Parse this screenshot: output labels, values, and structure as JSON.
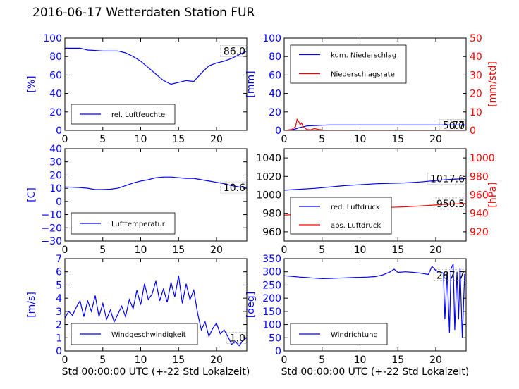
{
  "title": "2016-06-17 Wetterdaten Station FUR",
  "colors": {
    "primary": "#0000ff",
    "secondary": "#ff0000",
    "axis": "#000000"
  },
  "chart_data": [
    {
      "id": "humidity",
      "type": "line",
      "ylabel": "[%]",
      "xlabel": "",
      "xlim": [
        0,
        24
      ],
      "ylim": [
        0,
        100
      ],
      "xticks": [
        0,
        5,
        10,
        15,
        20
      ],
      "yticks": [
        0,
        20,
        40,
        60,
        80,
        100
      ],
      "legend": "bottom-left",
      "annotations": [
        {
          "text": "86.0",
          "x": 23.8,
          "y": 86
        }
      ],
      "series": [
        {
          "name": "rel. Luftfeuchte",
          "color": "#0000ff",
          "x": [
            0,
            2,
            3,
            5,
            7,
            8,
            9,
            10,
            11,
            12,
            13,
            14,
            15,
            16,
            17,
            18,
            19,
            20,
            21,
            22,
            23,
            24
          ],
          "y": [
            89,
            89,
            87,
            86,
            86,
            84,
            80,
            75,
            68,
            61,
            54,
            50,
            52,
            54,
            53,
            62,
            70,
            73,
            75,
            78,
            82,
            86
          ]
        }
      ]
    },
    {
      "id": "precip",
      "type": "line",
      "ylabel": "[mm]",
      "y2label": "[mm/std]",
      "xlabel": "",
      "xlim": [
        0,
        24
      ],
      "ylim": [
        0,
        100
      ],
      "y2lim": [
        0,
        50
      ],
      "xticks": [
        0,
        5,
        10,
        15,
        20
      ],
      "yticks": [
        0,
        20,
        40,
        60,
        80,
        100
      ],
      "y2ticks": [
        0,
        10,
        20,
        30,
        40,
        50
      ],
      "legend": "top-left",
      "annotations": [
        {
          "text": "5.77",
          "x": 23.8,
          "y": 5.77
        },
        {
          "text": "0.0",
          "x": 23.8,
          "y": 0
        }
      ],
      "series": [
        {
          "name": "kum. Niederschlag",
          "color": "#0000ff",
          "axis": "left",
          "x": [
            0,
            1,
            1.5,
            2,
            2.5,
            3,
            4,
            5,
            6,
            24
          ],
          "y": [
            0,
            0.5,
            1.5,
            3,
            4,
            4.8,
            5.3,
            5.6,
            5.77,
            5.77
          ]
        },
        {
          "name": "Niederschlagsrate",
          "color": "#ff0000",
          "axis": "right",
          "x": [
            0,
            1,
            1.5,
            1.7,
            1.9,
            2.1,
            2.3,
            2.5,
            2.8,
            3,
            3.5,
            4,
            4.5,
            5,
            5.3,
            6,
            24
          ],
          "y": [
            0,
            0.5,
            2,
            6,
            5,
            3,
            4,
            2,
            1,
            0.5,
            0.3,
            1,
            0.5,
            0.3,
            0,
            0,
            0
          ]
        }
      ]
    },
    {
      "id": "temperature",
      "type": "line",
      "ylabel": "[C]",
      "xlabel": "",
      "xlim": [
        0,
        24
      ],
      "ylim": [
        -30,
        40
      ],
      "xticks": [
        0,
        5,
        10,
        15,
        20
      ],
      "yticks": [
        -30,
        -20,
        -10,
        0,
        10,
        20,
        30,
        40
      ],
      "legend": "bottom-left",
      "annotations": [
        {
          "text": "10.6",
          "x": 23.8,
          "y": 10.6
        }
      ],
      "series": [
        {
          "name": "Lufttemperatur",
          "color": "#0000ff",
          "x": [
            0,
            2,
            3,
            4,
            5,
            6,
            7,
            8,
            9,
            10,
            11,
            12,
            13,
            14,
            15,
            16,
            17,
            18,
            19,
            20,
            21,
            22,
            23,
            24
          ],
          "y": [
            11,
            10.5,
            10,
            9,
            9,
            9.3,
            10,
            12,
            14,
            15.5,
            16.5,
            18,
            18.5,
            18.5,
            18,
            17.5,
            17.5,
            16.5,
            15.5,
            14.5,
            13.5,
            12,
            11,
            10.6
          ]
        }
      ]
    },
    {
      "id": "pressure",
      "type": "line",
      "ylabel": "",
      "y2label": "[hPa]",
      "xlabel": "",
      "xlim": [
        0,
        24
      ],
      "ylim": [
        950,
        1050
      ],
      "y2lim": [
        910,
        1010
      ],
      "xticks": [
        0,
        5,
        10,
        15,
        20
      ],
      "yticks": [
        960,
        980,
        1000,
        1020,
        1040
      ],
      "y2ticks": [
        920,
        940,
        960,
        980,
        1000
      ],
      "legend": "bottom-left",
      "annotations": [
        {
          "text": "1017.6",
          "x": 23.8,
          "y": 1017.6
        },
        {
          "text": "950.5",
          "x": 23.8,
          "y": 990.5
        }
      ],
      "series": [
        {
          "name": "red. Luftdruck",
          "color": "#0000ff",
          "axis": "left",
          "x": [
            0,
            2,
            4,
            6,
            8,
            10,
            12,
            14,
            16,
            18,
            20,
            22,
            24
          ],
          "y": [
            1005,
            1006,
            1007,
            1008.5,
            1010,
            1011,
            1012,
            1012.5,
            1013,
            1014,
            1015.5,
            1016.8,
            1017.6
          ]
        },
        {
          "name": "abs. Luftdruck",
          "color": "#ff0000",
          "axis": "right",
          "x": [
            0,
            2,
            4,
            6,
            8,
            10,
            12,
            14,
            16,
            18,
            20,
            22,
            24
          ],
          "y": [
            938,
            939,
            940,
            941,
            942.5,
            944,
            945.5,
            946.5,
            947,
            948,
            949,
            950,
            950.5
          ]
        }
      ]
    },
    {
      "id": "windspeed",
      "type": "line",
      "ylabel": "[m/s]",
      "xlabel": "Std 00:00:00 UTC (+-22 Std Lokalzeit)",
      "xlim": [
        0,
        24
      ],
      "ylim": [
        0,
        7
      ],
      "xticks": [
        0,
        5,
        10,
        15,
        20
      ],
      "yticks": [
        0,
        1,
        2,
        3,
        4,
        5,
        6,
        7
      ],
      "legend": "bottom-left",
      "annotations": [
        {
          "text": "1.0",
          "x": 23.8,
          "y": 1.0
        }
      ],
      "series": [
        {
          "name": "Windgeschwindigkeit",
          "color": "#0000ff",
          "x": [
            0,
            0.5,
            1,
            1.5,
            2,
            2.5,
            3,
            3.5,
            4,
            4.5,
            5,
            5.5,
            6,
            6.5,
            7,
            7.5,
            8,
            8.5,
            9,
            9.5,
            10,
            10.5,
            11,
            11.5,
            12,
            12.5,
            13,
            13.5,
            14,
            14.5,
            15,
            15.5,
            16,
            16.5,
            17,
            17.5,
            18,
            18.5,
            19,
            19.5,
            20,
            20.5,
            21,
            21.5,
            22,
            22.5,
            23,
            23.5,
            24
          ],
          "y": [
            2.5,
            3,
            2.7,
            3.3,
            3.8,
            2.6,
            3.8,
            3,
            4.2,
            2.6,
            3.6,
            2.4,
            3.1,
            2.2,
            2.8,
            3.4,
            2.6,
            3.9,
            3.2,
            4.6,
            3.5,
            5.1,
            3.9,
            4.3,
            5.3,
            3.8,
            4.7,
            3.7,
            5.2,
            4.1,
            5.7,
            3.6,
            5.1,
            3.9,
            4.6,
            2.9,
            1.6,
            2.2,
            1.1,
            1.7,
            2.1,
            1.3,
            1.6,
            1.1,
            0.5,
            0.7,
            0.4,
            0.8,
            1.0
          ]
        }
      ]
    },
    {
      "id": "winddir",
      "type": "line",
      "ylabel": "[deg]",
      "xlabel": "Std 00:00:00 UTC (+-22 Std Lokalzeit)",
      "xlim": [
        0,
        24
      ],
      "ylim": [
        0,
        350
      ],
      "xticks": [
        0,
        5,
        10,
        15,
        20
      ],
      "yticks": [
        0,
        50,
        100,
        150,
        200,
        250,
        300,
        350
      ],
      "legend": "bottom-left",
      "annotations": [
        {
          "text": "287.7",
          "x": 23.8,
          "y": 287.7
        }
      ],
      "series": [
        {
          "name": "Windrichtung",
          "color": "#0000ff",
          "x": [
            0,
            1,
            2,
            3,
            4,
            5,
            6,
            7,
            8,
            9,
            10,
            11,
            12,
            13,
            14,
            14.5,
            15,
            16,
            17,
            18,
            19,
            19.5,
            20,
            20.5,
            21,
            21.2,
            21.5,
            21.8,
            22,
            22.3,
            22.5,
            22.8,
            23,
            23.2,
            23.5,
            23.8,
            24
          ],
          "y": [
            285,
            283,
            280,
            278,
            276,
            274,
            275,
            276,
            277,
            278,
            279,
            280,
            282,
            288,
            300,
            310,
            298,
            300,
            298,
            295,
            290,
            320,
            305,
            300,
            295,
            120,
            300,
            70,
            310,
            330,
            80,
            300,
            120,
            315,
            50,
            290,
            288
          ]
        }
      ]
    }
  ]
}
